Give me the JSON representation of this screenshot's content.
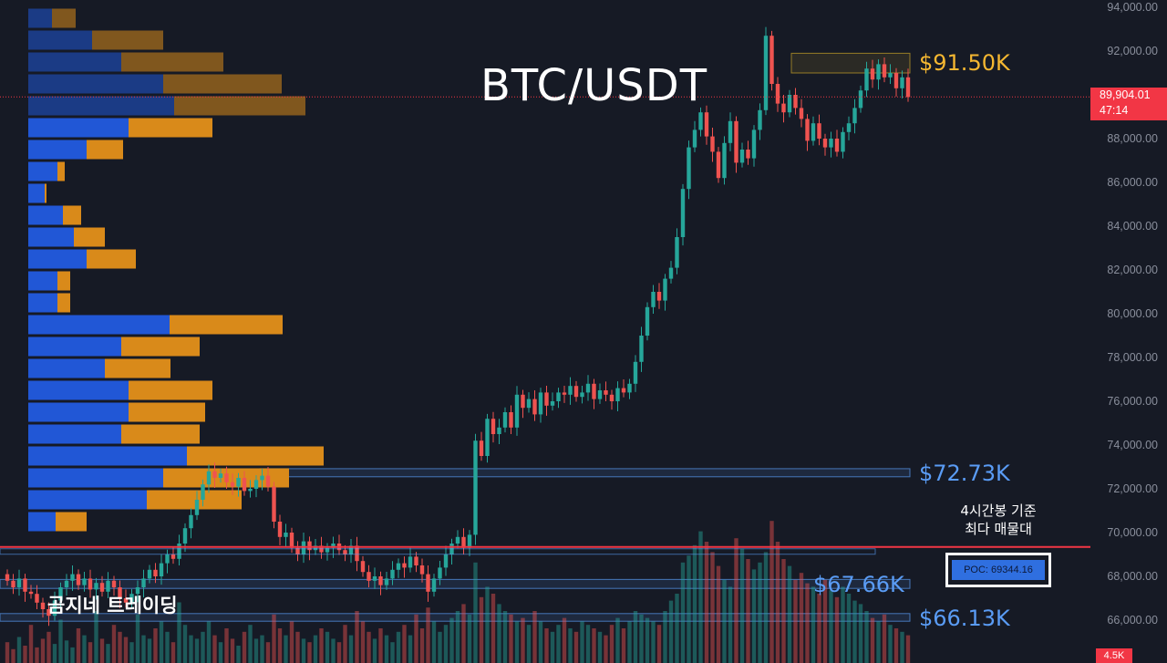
{
  "title": "BTC/USDT",
  "brand": "곰지네 트레이딩",
  "current_price": {
    "value": "89,904.01",
    "countdown": "47:14",
    "level": 89904.01
  },
  "volume_tag": "4.5K",
  "poc": {
    "label": "POC: 69344.16",
    "value": 69344.16,
    "note_line1": "4시간봉 기준",
    "note_line2": "최다 매물대"
  },
  "levels": [
    {
      "label": "$91.50K",
      "value": 91500,
      "color": "#f5b731"
    },
    {
      "label": "$72.73K",
      "value": 72730,
      "color": "#5a9cf5"
    },
    {
      "label": "$67.66K",
      "value": 67660,
      "color": "#5a9cf5"
    },
    {
      "label": "$66.13K",
      "value": 66130,
      "color": "#5a9cf5"
    }
  ],
  "colors": {
    "up": "#26a69a",
    "down": "#ef5350",
    "vp_buy": "#2157d6",
    "vp_sell": "#d98a1a",
    "poc_line": "#f23645",
    "background": "#161a25"
  },
  "chart_data": {
    "type": "candlestick",
    "title": "BTC/USDT",
    "y_axis": {
      "ticks": [
        "94,000.00",
        "92,000.00",
        "90,000.00",
        "88,000.00",
        "86,000.00",
        "84,000.00",
        "82,000.00",
        "80,000.00",
        "78,000.00",
        "76,000.00",
        "74,000.00",
        "72,000.00",
        "70,000.00",
        "68,000.00",
        "66,000.00"
      ],
      "range": [
        64500,
        94300
      ]
    },
    "zones": [
      {
        "low": 91000,
        "high": 91900,
        "color": "#c9a227"
      },
      {
        "low": 72550,
        "high": 72920,
        "color": "#5a9cf5"
      },
      {
        "low": 67450,
        "high": 67860,
        "color": "#5a9cf5"
      },
      {
        "low": 65950,
        "high": 66300,
        "color": "#5a9cf5"
      }
    ],
    "closes": [
      67800,
      67500,
      67900,
      67300,
      67200,
      66800,
      66500,
      66200,
      66900,
      67500,
      67800,
      68100,
      67600,
      67900,
      67400,
      67700,
      67300,
      67800,
      67500,
      67000,
      66800,
      67200,
      67500,
      67900,
      68300,
      68000,
      68600,
      69000,
      68800,
      69500,
      70200,
      70800,
      71500,
      72200,
      72800,
      72500,
      72700,
      72300,
      72100,
      72500,
      71900,
      72000,
      72400,
      72600,
      72100,
      70500,
      69800,
      70000,
      69300,
      69000,
      69600,
      69200,
      69400,
      69100,
      69300,
      69500,
      69200,
      69000,
      69400,
      68700,
      68200,
      67800,
      68000,
      67600,
      67900,
      68300,
      68600,
      68400,
      68900,
      68500,
      68100,
      67300,
      67900,
      68400,
      69000,
      69500,
      69800,
      69300,
      69900,
      74200,
      73500,
      75200,
      74500,
      74800,
      75500,
      74800,
      76300,
      75700,
      76100,
      75400,
      76400,
      75800,
      76000,
      76400,
      76300,
      76700,
      76200,
      76400,
      76800,
      76100,
      76500,
      76300,
      76000,
      76600,
      76400,
      76800,
      77800,
      79000,
      80300,
      81000,
      80600,
      81600,
      82100,
      83500,
      85700,
      87600,
      88400,
      89200,
      88100,
      87400,
      86200,
      87800,
      88800,
      86900,
      87500,
      87100,
      88400,
      89300,
      92700,
      90500,
      89600,
      89200,
      90000,
      89400,
      88900,
      87900,
      88700,
      88000,
      87600,
      88000,
      87400,
      88300,
      88700,
      89400,
      90200,
      91200,
      90700,
      91400,
      90800,
      91000,
      90300,
      90800,
      89900
    ],
    "volume_profile": [
      {
        "price": 93500,
        "buy": 26,
        "sell": 26
      },
      {
        "price": 92500,
        "buy": 70,
        "sell": 78
      },
      {
        "price": 91500,
        "buy": 102,
        "sell": 112
      },
      {
        "price": 90500,
        "buy": 148,
        "sell": 130
      },
      {
        "price": 89500,
        "buy": 160,
        "sell": 144
      },
      {
        "price": 88500,
        "buy": 110,
        "sell": 92
      },
      {
        "price": 87500,
        "buy": 64,
        "sell": 40
      },
      {
        "price": 86500,
        "buy": 32,
        "sell": 8
      },
      {
        "price": 85500,
        "buy": 18,
        "sell": 2
      },
      {
        "price": 84500,
        "buy": 38,
        "sell": 20
      },
      {
        "price": 83500,
        "buy": 50,
        "sell": 34
      },
      {
        "price": 82500,
        "buy": 64,
        "sell": 54
      },
      {
        "price": 81500,
        "buy": 32,
        "sell": 14
      },
      {
        "price": 80500,
        "buy": 32,
        "sell": 14
      },
      {
        "price": 79500,
        "buy": 155,
        "sell": 124
      },
      {
        "price": 78500,
        "buy": 102,
        "sell": 86
      },
      {
        "price": 77500,
        "buy": 84,
        "sell": 72
      },
      {
        "price": 76500,
        "buy": 110,
        "sell": 92
      },
      {
        "price": 75500,
        "buy": 110,
        "sell": 84
      },
      {
        "price": 74500,
        "buy": 102,
        "sell": 86
      },
      {
        "price": 73500,
        "buy": 174,
        "sell": 150
      },
      {
        "price": 72500,
        "buy": 148,
        "sell": 138
      },
      {
        "price": 71500,
        "buy": 130,
        "sell": 104
      },
      {
        "price": 70500,
        "buy": 30,
        "sell": 34
      }
    ],
    "volumes": [
      12,
      8,
      15,
      10,
      22,
      9,
      14,
      18,
      11,
      25,
      13,
      9,
      20,
      16,
      12,
      30,
      14,
      11,
      22,
      18,
      15,
      12,
      28,
      16,
      14,
      20,
      24,
      18,
      12,
      35,
      22,
      16,
      14,
      18,
      24,
      16,
      12,
      20,
      14,
      10,
      18,
      22,
      14,
      16,
      12,
      28,
      20,
      16,
      24,
      18,
      14,
      12,
      16,
      20,
      18,
      14,
      12,
      22,
      16,
      30,
      24,
      18,
      14,
      20,
      16,
      12,
      18,
      22,
      16,
      28,
      20,
      32,
      24,
      18,
      22,
      26,
      30,
      34,
      28,
      58,
      38,
      44,
      40,
      34,
      30,
      28,
      24,
      26,
      22,
      30,
      24,
      20,
      18,
      22,
      26,
      20,
      18,
      24,
      22,
      20,
      18,
      16,
      22,
      26,
      20,
      24,
      30,
      28,
      26,
      24,
      22,
      30,
      36,
      40,
      58,
      62,
      68,
      76,
      70,
      64,
      56,
      48,
      44,
      72,
      66,
      60,
      54,
      58,
      64,
      82,
      70,
      60,
      56,
      48,
      52,
      46,
      44,
      40,
      48,
      42,
      38,
      44,
      40,
      36,
      34,
      30,
      26,
      24,
      28,
      22,
      20,
      18,
      16
    ]
  }
}
